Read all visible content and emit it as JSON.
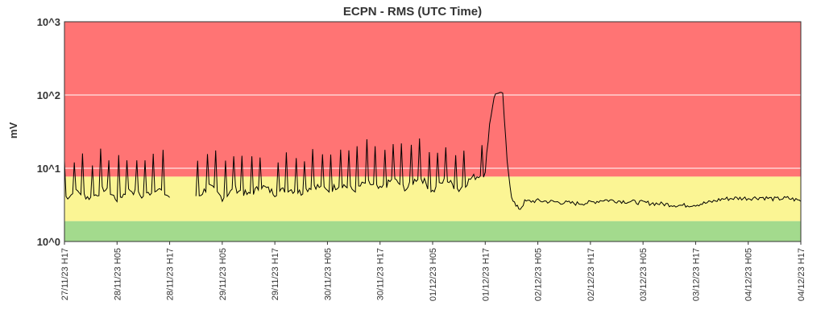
{
  "chart_data": {
    "type": "line",
    "title": "ECPN - RMS (UTC Time)",
    "ylabel": "mV",
    "xlabel": "",
    "yscale": "log",
    "ylim": [
      1,
      1000
    ],
    "y_ticks": [
      {
        "value": 1,
        "label": "10^0"
      },
      {
        "value": 10,
        "label": "10^1"
      },
      {
        "value": 100,
        "label": "10^2"
      },
      {
        "value": 1000,
        "label": "10^3"
      }
    ],
    "x_ticks": [
      "27/11/23 H17",
      "28/11/23 H05",
      "28/11/23 H17",
      "29/11/23 H05",
      "29/11/23 H17",
      "30/11/23 H05",
      "30/11/23 H17",
      "01/12/23 H05",
      "01/12/23 H17",
      "02/12/23 H05",
      "02/12/23 H17",
      "03/12/23 H05",
      "03/12/23 H17",
      "04/12/23 H05",
      "04/12/23 H17"
    ],
    "grid": true,
    "bands": [
      {
        "from": 1,
        "to": 1.9,
        "color": "#a3da8d"
      },
      {
        "from": 1.9,
        "to": 7.7,
        "color": "#fbf594"
      },
      {
        "from": 7.7,
        "to": 1000,
        "color": "#ff7474"
      }
    ],
    "line_color": "#000000",
    "series": [
      {
        "x": [
          "27/11/23 H17",
          "27/11/23 H20",
          "27/11/23 H23",
          "28/11/23 H02",
          "28/11/23 H05",
          "28/11/23 H08",
          "28/11/23 H11",
          "28/11/23 H14",
          "28/11/23 H17",
          "28/11/23 H20",
          "28/11/23 H23",
          "29/11/23 H02",
          "29/11/23 H05",
          "29/11/23 H08",
          "29/11/23 H11",
          "29/11/23 H14",
          "29/11/23 H17",
          "29/11/23 H20",
          "29/11/23 H23",
          "30/11/23 H02",
          "30/11/23 H05",
          "30/11/23 H08",
          "30/11/23 H11",
          "30/11/23 H14",
          "30/11/23 H17",
          "30/11/23 H20",
          "30/11/23 H23",
          "01/12/23 H02",
          "01/12/23 H05",
          "01/12/23 H08",
          "01/12/23 H11",
          "01/12/23 H14",
          "01/12/23 H17",
          "01/12/23 H18",
          "01/12/23 H19",
          "01/12/23 H20",
          "01/12/23 H21",
          "01/12/23 H22",
          "01/12/23 H23",
          "02/12/23 H00",
          "02/12/23 H01",
          "02/12/23 H02",
          "02/12/23 H05",
          "02/12/23 H08",
          "02/12/23 H11",
          "02/12/23 H14",
          "02/12/23 H17",
          "02/12/23 H20",
          "02/12/23 H23",
          "03/12/23 H02",
          "03/12/23 H05",
          "03/12/23 H08",
          "03/12/23 H11",
          "03/12/23 H14",
          "03/12/23 H17",
          "03/12/23 H20",
          "03/12/23 H23",
          "04/12/23 H02",
          "04/12/23 H05",
          "04/12/23 H08",
          "04/12/23 H11",
          "04/12/23 H14",
          "04/12/23 H17"
        ],
        "values": [
          4.5,
          5.5,
          4.4,
          6.0,
          4.3,
          5.8,
          4.6,
          6.2,
          4.6,
          null,
          4.4,
          6.5,
          4.5,
          6.0,
          4.9,
          6.5,
          5.2,
          6.0,
          5.3,
          6.8,
          5.5,
          7.0,
          5.7,
          7.4,
          5.8,
          8.0,
          6.0,
          9.0,
          5.5,
          8.0,
          5.8,
          8.5,
          9.5,
          40,
          95,
          110,
          100,
          12,
          4.2,
          3.0,
          2.8,
          3.5,
          3.6,
          3.5,
          3.4,
          3.3,
          3.4,
          3.7,
          3.6,
          3.5,
          3.4,
          3.3,
          3.2,
          3.1,
          3.2,
          3.4,
          3.8,
          3.9,
          3.9,
          4.0,
          3.8,
          3.9,
          3.6
        ]
      }
    ]
  }
}
